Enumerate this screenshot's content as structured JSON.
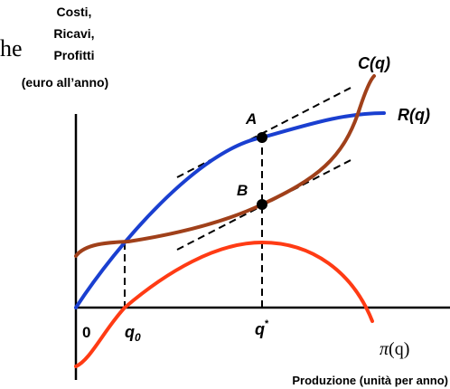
{
  "title_fragment": "he",
  "y_axis_label": [
    "Costi,",
    "Ricavi,",
    "Profitti",
    "(euro all’anno)"
  ],
  "x_axis_label": "Produzione (unità per anno)",
  "curves": {
    "cost": {
      "label": "C(q)",
      "color": "#a0401a"
    },
    "revenue": {
      "label": "R(q)",
      "color": "#1a3fd0"
    },
    "profit": {
      "label_base": "π",
      "label_arg": "(q)",
      "color": "#ff3b14"
    }
  },
  "points": {
    "A": "A",
    "B": "B"
  },
  "ticks": {
    "origin": "0",
    "q0_base": "q",
    "q0_sub": "0",
    "qstar_base": "q",
    "qstar_sup": "*"
  },
  "axis_color": "#000000",
  "guide_color": "#000000"
}
